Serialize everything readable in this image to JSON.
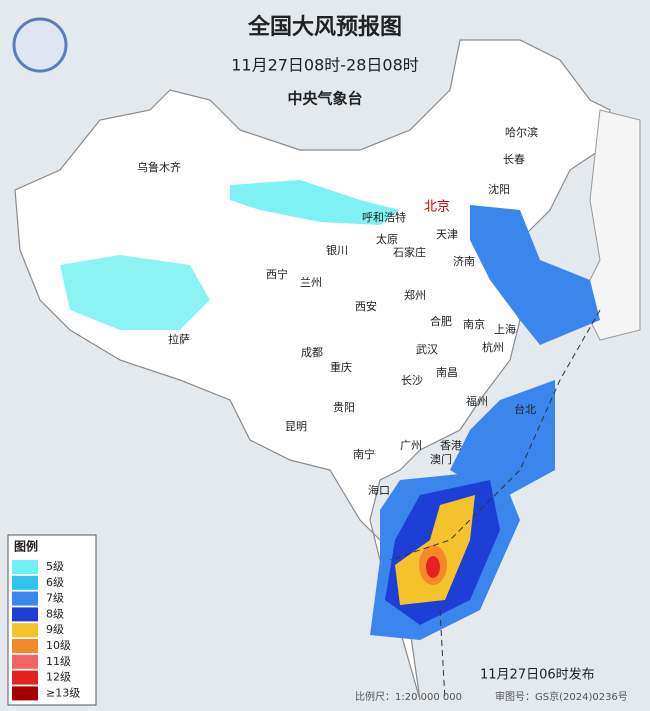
{
  "header": {
    "title": "全国大风预报图",
    "subtitle": "11月27日08时-28日08时",
    "agency": "中央气象台"
  },
  "cities": [
    "北京",
    "哈尔滨",
    "长春",
    "沈阳",
    "乌鲁木齐",
    "呼和浩特",
    "天津",
    "太原",
    "石家庄",
    "银川",
    "济南",
    "西宁",
    "兰州",
    "郑州",
    "西安",
    "合肥",
    "南京",
    "上海",
    "拉萨",
    "成都",
    "武汉",
    "杭州",
    "重庆",
    "南昌",
    "长沙",
    "福州",
    "贵阳",
    "台北",
    "昆明",
    "广州",
    "香港",
    "澳门",
    "南宁",
    "海口"
  ],
  "legend": {
    "title": "图例",
    "items": [
      {
        "label": "5级",
        "color": "#6ff0f2"
      },
      {
        "label": "6级",
        "color": "#2fc4ee"
      },
      {
        "label": "7级",
        "color": "#3b86ec"
      },
      {
        "label": "8级",
        "color": "#1d3fd6"
      },
      {
        "label": "9级",
        "color": "#f4c22b"
      },
      {
        "label": "10级",
        "color": "#f5892a"
      },
      {
        "label": "11级",
        "color": "#f26262"
      },
      {
        "label": "12级",
        "color": "#e52222"
      },
      {
        "label": "≥13级",
        "color": "#a80000"
      }
    ]
  },
  "footer": {
    "issued": "11月27日06时发布",
    "scale": "比例尺：1:20 000 000",
    "review": "审图号：GS京(2024)0236号"
  }
}
